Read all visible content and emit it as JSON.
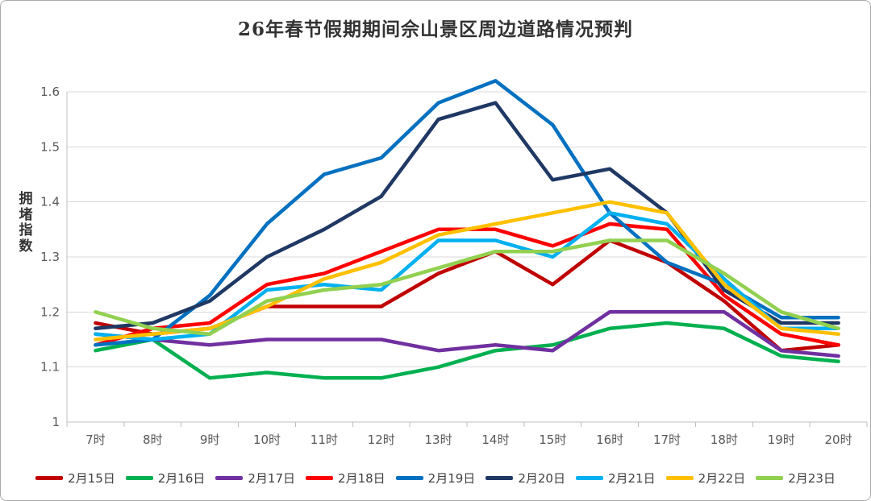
{
  "title": "26年春节假期期间佘山景区周边道路情况预判",
  "chart_data": {
    "type": "line",
    "title": "26年春节假期期间佘山景区周边道路情况预判",
    "xlabel": "",
    "ylabel": "拥堵指数",
    "ylim": [
      1,
      1.6
    ],
    "yticks": [
      1,
      1.1,
      1.2,
      1.3,
      1.4,
      1.5,
      1.6
    ],
    "grid": "horizontal-only",
    "legend_position": "bottom",
    "categories": [
      "7时",
      "8时",
      "9时",
      "10时",
      "11时",
      "12时",
      "13时",
      "14时",
      "15时",
      "16时",
      "17时",
      "18时",
      "19时",
      "20时"
    ],
    "series": [
      {
        "name": "2月15日",
        "color": "#C00000",
        "values": [
          1.18,
          1.16,
          1.17,
          1.21,
          1.21,
          1.21,
          1.27,
          1.31,
          1.25,
          1.33,
          1.29,
          1.22,
          1.13,
          1.14
        ]
      },
      {
        "name": "2月16日",
        "color": "#00B050",
        "values": [
          1.13,
          1.15,
          1.08,
          1.09,
          1.08,
          1.08,
          1.1,
          1.13,
          1.14,
          1.17,
          1.18,
          1.17,
          1.12,
          1.11
        ]
      },
      {
        "name": "2月17日",
        "color": "#7030A0",
        "values": [
          1.16,
          1.15,
          1.14,
          1.15,
          1.15,
          1.15,
          1.13,
          1.14,
          1.13,
          1.2,
          1.2,
          1.2,
          1.13,
          1.12
        ]
      },
      {
        "name": "2月18日",
        "color": "#FF0000",
        "values": [
          1.14,
          1.17,
          1.18,
          1.25,
          1.27,
          1.31,
          1.35,
          1.35,
          1.32,
          1.36,
          1.35,
          1.23,
          1.16,
          1.14
        ]
      },
      {
        "name": "2月19日",
        "color": "#0070C0",
        "values": [
          1.14,
          1.15,
          1.23,
          1.36,
          1.45,
          1.48,
          1.58,
          1.62,
          1.54,
          1.38,
          1.29,
          1.25,
          1.19,
          1.19
        ]
      },
      {
        "name": "2月20日",
        "color": "#1F3864",
        "values": [
          1.17,
          1.18,
          1.22,
          1.3,
          1.35,
          1.41,
          1.55,
          1.58,
          1.44,
          1.46,
          1.38,
          1.24,
          1.18,
          1.18
        ]
      },
      {
        "name": "2月21日",
        "color": "#00B0F0",
        "values": [
          1.16,
          1.15,
          1.16,
          1.24,
          1.25,
          1.24,
          1.33,
          1.33,
          1.3,
          1.38,
          1.36,
          1.26,
          1.17,
          1.17
        ]
      },
      {
        "name": "2月22日",
        "color": "#FFC000",
        "values": [
          1.15,
          1.16,
          1.17,
          1.21,
          1.26,
          1.29,
          1.34,
          1.36,
          1.38,
          1.4,
          1.38,
          1.25,
          1.17,
          1.16
        ]
      },
      {
        "name": "2月23日",
        "color": "#92D050",
        "values": [
          1.2,
          1.17,
          1.16,
          1.22,
          1.24,
          1.25,
          1.28,
          1.31,
          1.31,
          1.33,
          1.33,
          1.27,
          1.2,
          1.17
        ]
      }
    ]
  },
  "colors": {
    "grid": "#D9D9D9",
    "axis": "#BFBFBF",
    "tick_text": "#595959",
    "legend_text": "#404040"
  }
}
